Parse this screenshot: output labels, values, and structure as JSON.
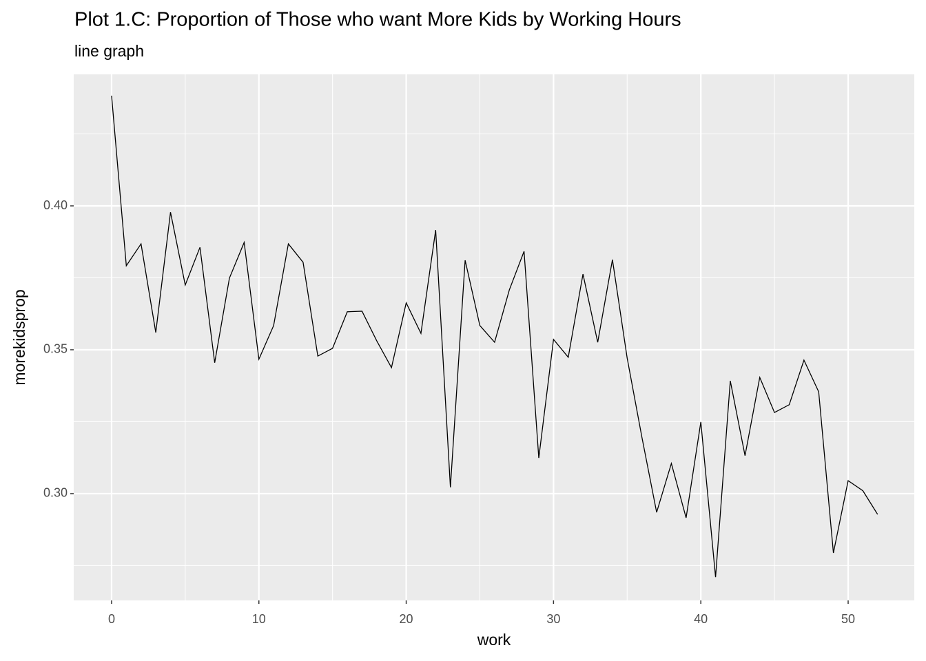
{
  "chart_data": {
    "type": "line",
    "title": "Plot 1.C:  Proportion of Those who want More Kids by Working Hours",
    "subtitle": "line graph",
    "x_label": "work",
    "y_label": "morekidsprop",
    "x": [
      0,
      1,
      2,
      3,
      4,
      5,
      6,
      7,
      8,
      9,
      10,
      11,
      12,
      13,
      14,
      15,
      16,
      17,
      18,
      19,
      20,
      21,
      22,
      23,
      24,
      25,
      26,
      27,
      28,
      29,
      30,
      31,
      32,
      33,
      34,
      35,
      36,
      37,
      38,
      39,
      40,
      41,
      42,
      43,
      44,
      45,
      46,
      47,
      48,
      49,
      50,
      51,
      52
    ],
    "series": [
      {
        "color": "#000000",
        "values": [
          0.4383,
          0.3792,
          0.3868,
          0.356,
          0.3978,
          0.3725,
          0.3856,
          0.3455,
          0.3749,
          0.3873,
          0.3467,
          0.3584,
          0.3868,
          0.3804,
          0.3478,
          0.3505,
          0.3632,
          0.3634,
          0.3531,
          0.3438,
          0.3663,
          0.3557,
          0.3916,
          0.3022,
          0.3811,
          0.3584,
          0.3526,
          0.3708,
          0.3842,
          0.3124,
          0.3536,
          0.3474,
          0.3763,
          0.3526,
          0.3813,
          0.3471,
          0.3196,
          0.2935,
          0.3105,
          0.2916,
          0.3249,
          0.271,
          0.3392,
          0.3132,
          0.3404,
          0.3282,
          0.3309,
          0.3464,
          0.3354,
          0.2794,
          0.3045,
          0.301,
          0.2928
        ]
      }
    ],
    "xlim": [
      -2.57,
      54.49
    ],
    "ylim": [
      0.2629,
      0.4457
    ],
    "xticks": [
      0,
      10,
      20,
      30,
      40,
      50
    ],
    "yticks": [
      {
        "value": 0.3,
        "label": "0.30"
      },
      {
        "value": 0.35,
        "label": "0.35"
      },
      {
        "value": 0.4,
        "label": "0.40"
      }
    ],
    "x_minor_ticks": [
      5,
      15,
      25,
      35,
      45
    ],
    "y_minor_ticks": [
      0.275,
      0.325,
      0.375,
      0.425
    ],
    "grid": true,
    "panel_color": "#ebebeb",
    "grid_color": "#ffffff"
  }
}
